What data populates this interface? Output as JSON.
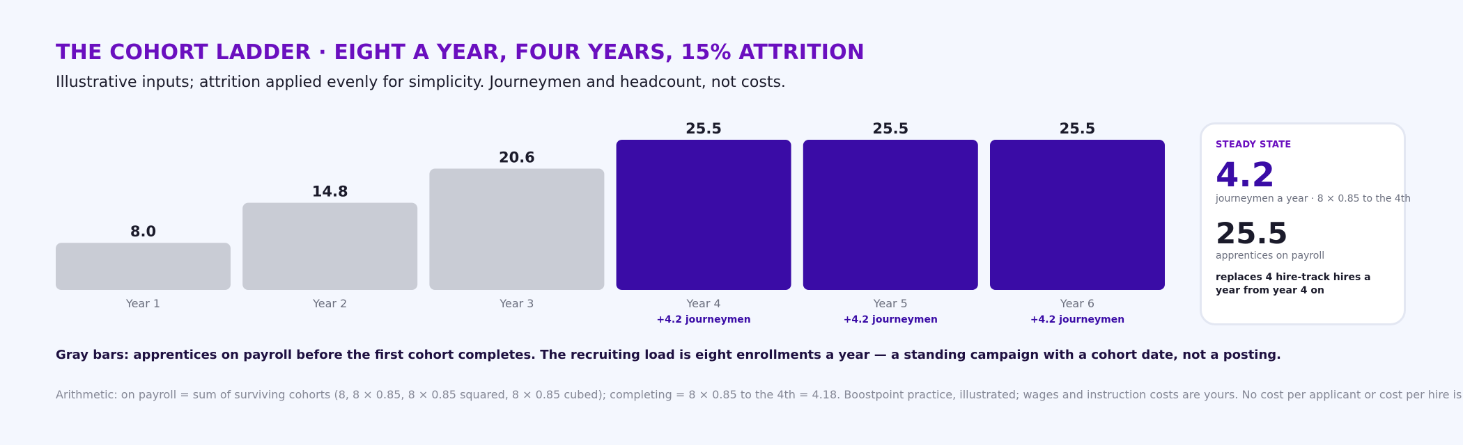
{
  "header": {
    "title": "THE COHORT LADDER · EIGHT A YEAR, FOUR YEARS, 15% ATTRITION",
    "subtitle": "Illustrative inputs; attrition applied evenly for simplicity. Journeymen and headcount, not costs."
  },
  "chart_data": {
    "type": "bar",
    "categories": [
      "Year 1",
      "Year 2",
      "Year 3",
      "Year 4",
      "Year 5",
      "Year 6"
    ],
    "values": [
      8.0,
      14.8,
      20.6,
      25.5,
      25.5,
      25.5
    ],
    "value_labels": [
      "8.0",
      "14.8",
      "20.6",
      "25.5",
      "25.5",
      "25.5"
    ],
    "bar_notes": [
      "",
      "",
      "",
      "+4.2 journeymen",
      "+4.2 journeymen",
      "+4.2 journeymen"
    ],
    "bar_colors": [
      "#c9ccd5",
      "#c9ccd5",
      "#c9ccd5",
      "#3a0ca6",
      "#3a0ca6",
      "#3a0ca6"
    ],
    "ylim": [
      0,
      25.5
    ],
    "grid": false,
    "title": "",
    "xlabel": "",
    "ylabel": ""
  },
  "panel": {
    "kicker": "STEADY STATE",
    "value1": "4.2",
    "caption1": "journeymen a year · 8 × 0.85 to the 4th",
    "value2": "25.5",
    "caption2": "apprentices on payroll",
    "note": "replaces 4 hire-track hires a year from year 4 on"
  },
  "footer": {
    "note": "Gray bars: apprentices on payroll before the first cohort completes. The recruiting load is eight enrollments a year — a standing campaign with a cohort date, not a posting.",
    "arithmetic": "Arithmetic: on payroll = sum of surviving cohorts (8, 8 × 0.85, 8 × 0.85 squared, 8 × 0.85 cubed); completing = 8 × 0.85 to the 4th = 4.18. Boostpoint practice, illustrated; wages and instruction costs are yours. No cost per applicant or cost per hire is computed."
  },
  "colors": {
    "accent": "#6a0fbf",
    "bar_highlight": "#3a0ca6",
    "bar_muted": "#c9ccd5",
    "background": "#f4f7fe"
  }
}
